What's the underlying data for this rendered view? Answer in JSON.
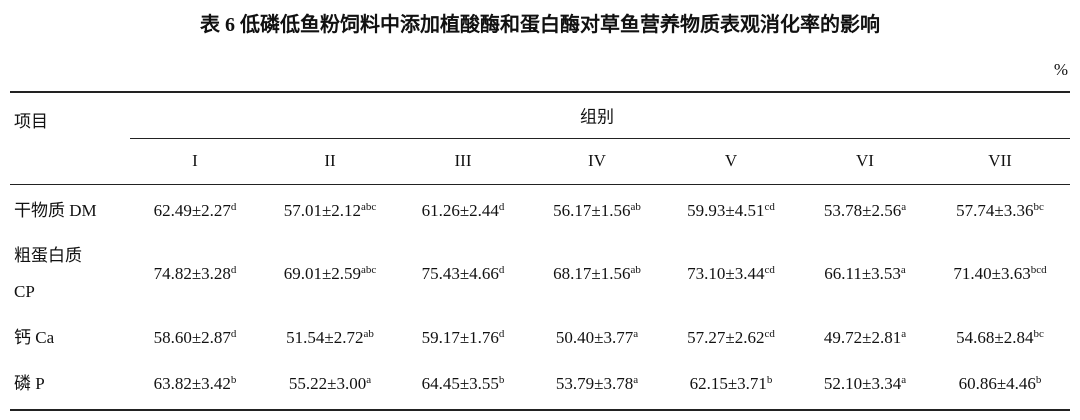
{
  "title": "表 6  低磷低鱼粉饲料中添加植酸酶和蛋白酶对草鱼营养物质表观消化率的影响",
  "unit": "%",
  "header": {
    "item": "项目",
    "group": "组别",
    "columns": [
      "I",
      "II",
      "III",
      "IV",
      "V",
      "VI",
      "VII"
    ]
  },
  "rows": [
    {
      "label": [
        "干物质 DM"
      ],
      "cells": [
        [
          "62.49±2.27",
          "d"
        ],
        [
          "57.01±2.12",
          "abc"
        ],
        [
          "61.26±2.44",
          "d"
        ],
        [
          "56.17±1.56",
          "ab"
        ],
        [
          "59.93±4.51",
          "cd"
        ],
        [
          "53.78±2.56",
          "a"
        ],
        [
          "57.74±3.36",
          "bc"
        ]
      ]
    },
    {
      "label": [
        "粗蛋白质",
        "CP"
      ],
      "cells": [
        [
          "74.82±3.28",
          "d"
        ],
        [
          "69.01±2.59",
          "abc"
        ],
        [
          "75.43±4.66",
          "d"
        ],
        [
          "68.17±1.56",
          "ab"
        ],
        [
          "73.10±3.44",
          "cd"
        ],
        [
          "66.11±3.53",
          "a"
        ],
        [
          "71.40±3.63",
          "bcd"
        ]
      ]
    },
    {
      "label": [
        "钙 Ca"
      ],
      "cells": [
        [
          "58.60±2.87",
          "d"
        ],
        [
          "51.54±2.72",
          "ab"
        ],
        [
          "59.17±1.76",
          "d"
        ],
        [
          "50.40±3.77",
          "a"
        ],
        [
          "57.27±2.62",
          "cd"
        ],
        [
          "49.72±2.81",
          "a"
        ],
        [
          "54.68±2.84",
          "bc"
        ]
      ]
    },
    {
      "label": [
        "磷 P"
      ],
      "cells": [
        [
          "63.82±3.42",
          "b"
        ],
        [
          "55.22±3.00",
          "a"
        ],
        [
          "64.45±3.55",
          "b"
        ],
        [
          "53.79±3.78",
          "a"
        ],
        [
          "62.15±3.71",
          "b"
        ],
        [
          "52.10±3.34",
          "a"
        ],
        [
          "60.86±4.46",
          "b"
        ]
      ]
    }
  ]
}
